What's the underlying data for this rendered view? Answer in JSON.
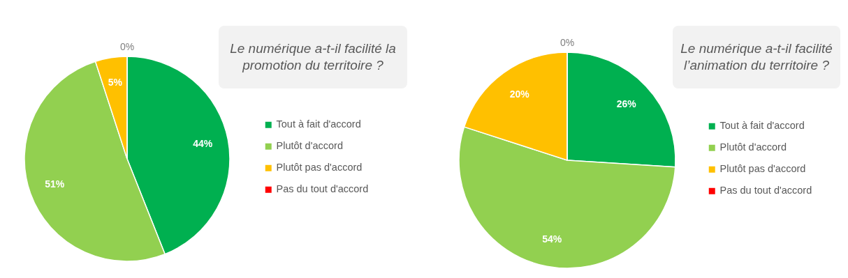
{
  "chart_data": [
    {
      "type": "pie",
      "title": "Le numérique a-t-il facilité la promotion du territoire ?",
      "categories": [
        "Tout à fait d'accord",
        "Plutôt d'accord",
        "Plutôt pas d'accord",
        "Pas du tout d'accord"
      ],
      "values": [
        44,
        51,
        5,
        0
      ],
      "colors": [
        "#00b050",
        "#92d050",
        "#ffc000",
        "#ff0000"
      ],
      "value_labels": [
        "44%",
        "51%",
        "5%",
        "0%"
      ],
      "legend": "right"
    },
    {
      "type": "pie",
      "title": "Le numérique a-t-il facilité l’animation du territoire ?",
      "categories": [
        "Tout à fait d'accord",
        "Plutôt d'accord",
        "Plutôt pas d'accord",
        "Pas du tout d'accord"
      ],
      "values": [
        26,
        54,
        20,
        0
      ],
      "colors": [
        "#00b050",
        "#92d050",
        "#ffc000",
        "#ff0000"
      ],
      "value_labels": [
        "26%",
        "54%",
        "20%",
        "0%"
      ],
      "legend": "right"
    }
  ]
}
